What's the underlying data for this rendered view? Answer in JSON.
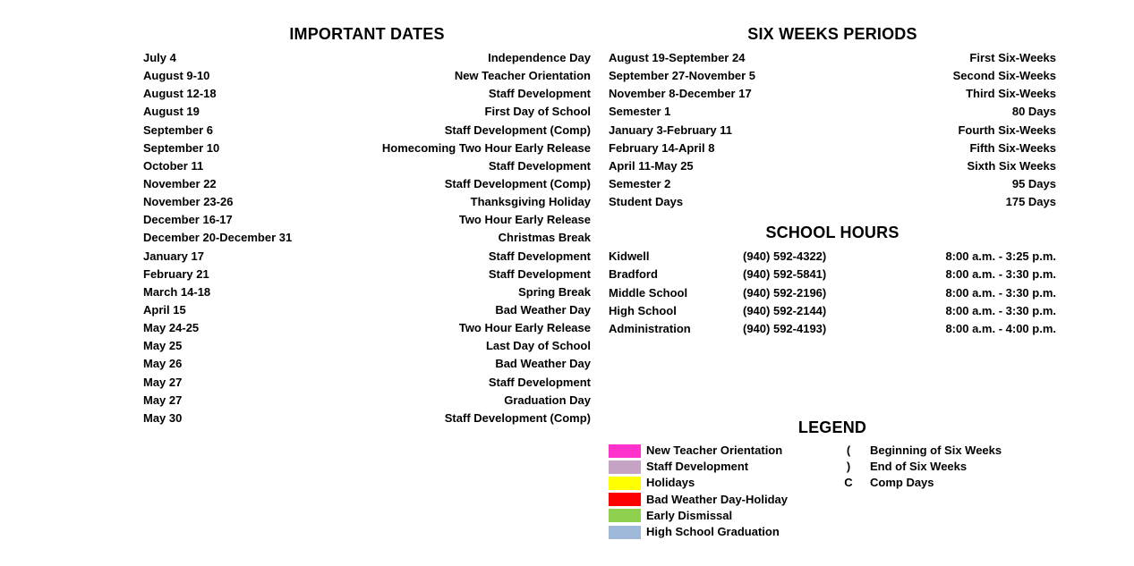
{
  "left": {
    "title": "IMPORTANT DATES",
    "rows": [
      {
        "date": "July 4",
        "desc": "Independence Day"
      },
      {
        "date": "August 9-10",
        "desc": "New Teacher Orientation"
      },
      {
        "date": "August 12-18",
        "desc": "Staff Development"
      },
      {
        "date": "August 19",
        "desc": "First Day of School"
      },
      {
        "date": "September 6",
        "desc": "Staff Development (Comp)"
      },
      {
        "date": "September 10",
        "desc": "Homecoming Two Hour Early Release"
      },
      {
        "date": "October 11",
        "desc": "Staff Development"
      },
      {
        "date": "November 22",
        "desc": "Staff Development (Comp)"
      },
      {
        "date": "November 23-26",
        "desc": "Thanksgiving Holiday"
      },
      {
        "date": "December 16-17",
        "desc": "Two Hour Early Release"
      },
      {
        "date": "December 20-December 31",
        "desc": "Christmas Break"
      },
      {
        "date": "January 17",
        "desc": "Staff Development"
      },
      {
        "date": "February 21",
        "desc": "Staff Development"
      },
      {
        "date": "March 14-18",
        "desc": "Spring Break"
      },
      {
        "date": "April 15",
        "desc": "Bad Weather Day"
      },
      {
        "date": "May 24-25",
        "desc": "Two Hour Early Release"
      },
      {
        "date": "May 25",
        "desc": "Last Day of School"
      },
      {
        "date": "May 26",
        "desc": "Bad Weather Day"
      },
      {
        "date": "May 27",
        "desc": "Staff Development"
      },
      {
        "date": "May 27",
        "desc": "Graduation Day"
      },
      {
        "date": "May 30",
        "desc": "Staff Development (Comp)"
      }
    ]
  },
  "sixweeks": {
    "title": "SIX WEEKS PERIODS",
    "rows": [
      {
        "date": "August 19-September 24",
        "desc": "First Six-Weeks"
      },
      {
        "date": "September 27-November 5",
        "desc": "Second Six-Weeks"
      },
      {
        "date": "November 8-December 17",
        "desc": "Third Six-Weeks"
      },
      {
        "date": "Semester 1",
        "desc": "80 Days"
      },
      {
        "date": "January 3-February 11",
        "desc": "Fourth Six-Weeks"
      },
      {
        "date": "February 14-April 8",
        "desc": "Fifth Six-Weeks"
      },
      {
        "date": "April 11-May 25",
        "desc": "Sixth Six Weeks"
      },
      {
        "date": "Semester 2",
        "desc": "95 Days"
      },
      {
        "date": "Student Days",
        "desc": "175 Days"
      }
    ]
  },
  "hours": {
    "title": "SCHOOL HOURS",
    "rows": [
      {
        "name": "Kidwell",
        "phone": "(940) 592-4322)",
        "time": "8:00 a.m. - 3:25 p.m."
      },
      {
        "name": "Bradford",
        "phone": "(940) 592-5841)",
        "time": "8:00 a.m. - 3:30 p.m."
      },
      {
        "name": "Middle School",
        "phone": "(940) 592-2196)",
        "time": "8:00 a.m. - 3:30 p.m."
      },
      {
        "name": "High School",
        "phone": "(940) 592-2144)",
        "time": "8:00 a.m. - 3:30 p.m."
      },
      {
        "name": "Administration",
        "phone": "(940) 592-4193)",
        "time": "8:00 a.m. - 4:00 p.m."
      }
    ]
  },
  "legend": {
    "title": "LEGEND",
    "colors": [
      {
        "color": "#ff33cc",
        "label": "New Teacher Orientation"
      },
      {
        "color": "#c4a3c4",
        "label": "Staff Development"
      },
      {
        "color": "#ffff00",
        "label": "Holidays"
      },
      {
        "color": "#ff0000",
        "label": "Bad Weather Day-Holiday"
      },
      {
        "color": "#8fd14f",
        "label": "Early Dismissal"
      },
      {
        "color": "#9db8d9",
        "label": "High School Graduation"
      }
    ],
    "symbols": [
      {
        "sym": "(",
        "label": "Beginning of Six Weeks"
      },
      {
        "sym": ")",
        "label": "End of Six Weeks"
      },
      {
        "sym": "C",
        "label": "Comp Days"
      }
    ]
  }
}
